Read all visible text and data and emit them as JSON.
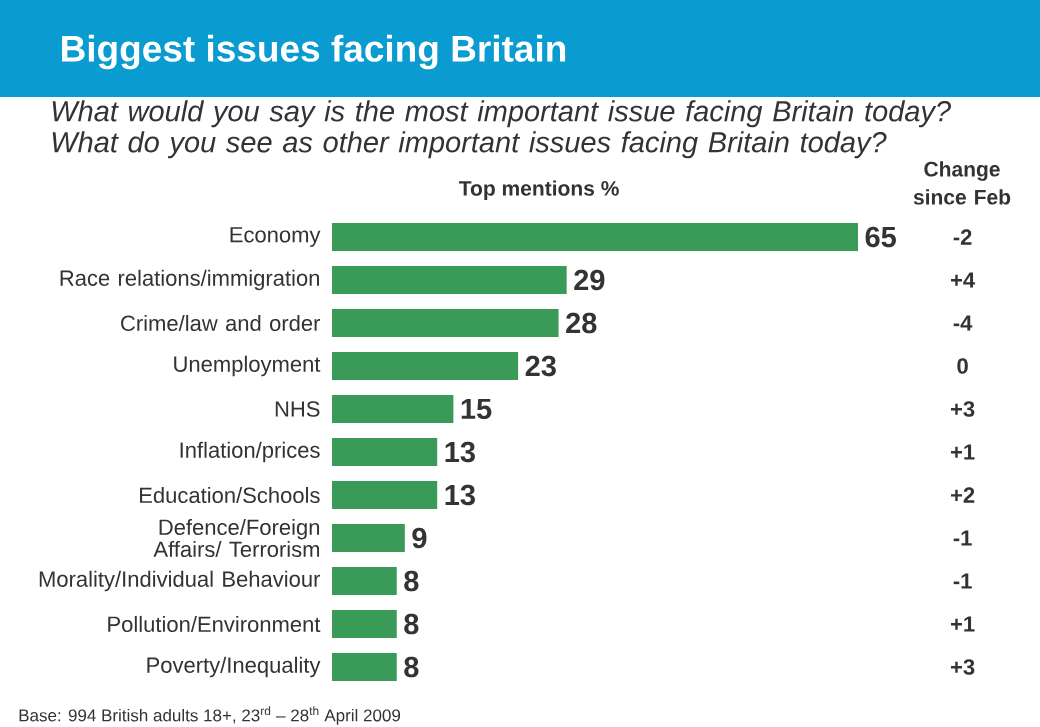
{
  "chart_data": {
    "type": "bar",
    "orientation": "horizontal",
    "title": "Biggest issues facing Britain",
    "subtitle": "What would you say is the most important issue facing Britain today? What do you see as other important issues facing Britain today?",
    "xlabel": "Top mentions %",
    "categories": [
      "Economy",
      "Race relations/immigration",
      "Crime/law and order",
      "Unemployment",
      "NHS",
      "Inflation/prices",
      "Education/Schools",
      "Defence/Foreign Affairs/ Terrorism",
      "Morality/Individual Behaviour",
      "Pollution/Environment",
      "Poverty/Inequality"
    ],
    "values": [
      65,
      29,
      28,
      23,
      15,
      13,
      13,
      9,
      8,
      8,
      8
    ],
    "color": "#3a9a58",
    "data_labels": true,
    "annotations": [
      "Change since Feb",
      "-2",
      "+4",
      "-4",
      "0",
      "+3",
      "+1",
      "+2",
      "-1",
      "-1",
      "+1",
      "+3",
      "Base: 994 British adults 18+, 23$^{rd}$ – 28$^{th}$ April 2009"
    ]
  }
}
